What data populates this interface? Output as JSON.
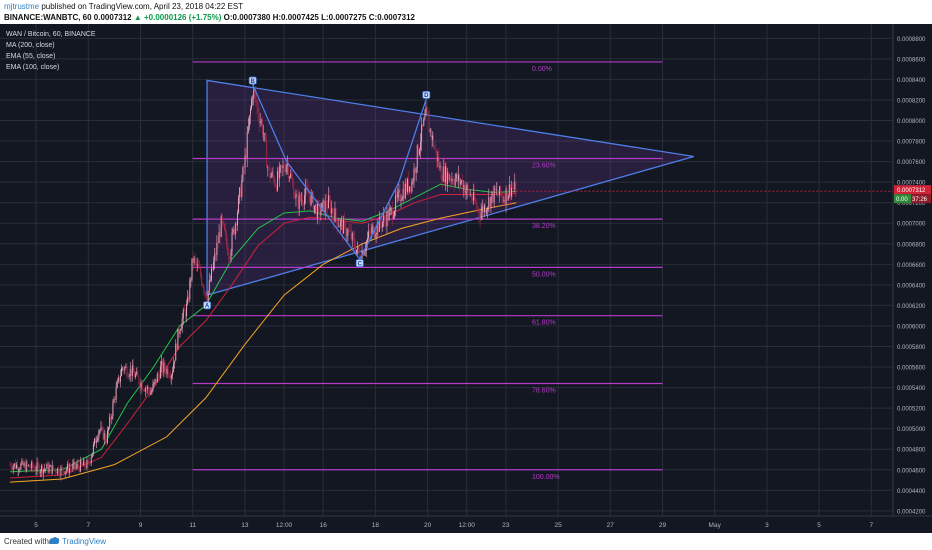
{
  "header": {
    "author": "mjtrustme",
    "published": " published on TradingView.com, April 23, 2018 04:22 EST",
    "symbol_line": "BINANCE:WANBTC, 60",
    "open_label": "O:",
    "open": "0.0007380",
    "high_label": "H:",
    "high": "0.0007425",
    "low_label": "L:",
    "low": "0.0007275",
    "close_label": "C:",
    "close": "0.0007312",
    "last": "0.0007312",
    "change": "▲ +0.0000126 (+1.75%)"
  },
  "legend": {
    "title": "WAN / Bitcoin, 60, BINANCE",
    "ma200": "MA (200, close)",
    "ema55": "EMA (55, close)",
    "ema100": "EMA (100, close)"
  },
  "price_tags": {
    "last": "0.0007312",
    "countdown": "37:26",
    "ema_value": "0.00"
  },
  "footer": {
    "created": "Created with",
    "brand": "TradingView"
  },
  "colors": {
    "background": "#131722",
    "grid": "#2a2e39",
    "fib": "#b43bc8",
    "pattern": "#4e7ee8",
    "up": "#e8a0b8",
    "down": "#a02848",
    "ma200": "#f5a623",
    "ema55": "#22c44a",
    "ema100": "#d0233a",
    "last_price": "#d0233a"
  },
  "chart_data": {
    "type": "candlestick",
    "symbol": "WANBTC",
    "exchange": "BINANCE",
    "interval": "60",
    "x_ticks": [
      "5",
      "7",
      "9",
      "11",
      "13",
      "12:00",
      "16",
      "18",
      "20",
      "12:00",
      "23",
      "25",
      "27",
      "29",
      "May",
      "3",
      "5",
      "7"
    ],
    "y_ticks": [
      "0.0008800",
      "0.0008600",
      "0.0008400",
      "0.0008200",
      "0.0008000",
      "0.0007800",
      "0.0007600",
      "0.0007400",
      "0.0007200",
      "0.0007000",
      "0.0006800",
      "0.0006600",
      "0.0006400",
      "0.0006200",
      "0.0006000",
      "0.0005800",
      "0.0005600",
      "0.0005400",
      "0.0005200",
      "0.0005000",
      "0.0004800",
      "0.0004600",
      "0.0004400",
      "0.0004200"
    ],
    "ylim": [
      0.000415,
      0.000892
    ],
    "fib_levels": [
      {
        "label": "0.00%",
        "price": 0.000857
      },
      {
        "label": "23.60%",
        "price": 0.000763
      },
      {
        "label": "38.20%",
        "price": 0.000704
      },
      {
        "label": "50.00%",
        "price": 0.000657
      },
      {
        "label": "61.80%",
        "price": 0.00061
      },
      {
        "label": "78.60%",
        "price": 0.000544
      },
      {
        "label": "100.00%",
        "price": 0.00046
      }
    ],
    "pattern_points": [
      {
        "label": "A",
        "day": 11.55,
        "price": 0.000624
      },
      {
        "label": "B",
        "day": 13.3,
        "price": 0.000835
      },
      {
        "label": "C",
        "day": 17.4,
        "price": 0.000665
      },
      {
        "label": "D",
        "day": 19.95,
        "price": 0.000821
      }
    ],
    "triangle": [
      {
        "day": 11.55,
        "price": 0.000839
      },
      {
        "day": 30.2,
        "price": 0.000765
      },
      {
        "day": 11.55,
        "price": 0.00063
      }
    ],
    "inner_path": [
      {
        "day": 13.3,
        "price": 0.000835
      },
      {
        "day": 14.6,
        "price": 0.00076
      },
      {
        "day": 17.4,
        "price": 0.000665
      },
      {
        "day": 18.9,
        "price": 0.00074
      },
      {
        "day": 19.95,
        "price": 0.000821
      }
    ],
    "series": [
      {
        "name": "MA (200, close)",
        "points": [
          [
            4.0,
            0.000448
          ],
          [
            6.0,
            0.000451
          ],
          [
            8.0,
            0.000465
          ],
          [
            10.0,
            0.000492
          ],
          [
            11.5,
            0.00053
          ],
          [
            13.0,
            0.000582
          ],
          [
            14.5,
            0.00063
          ],
          [
            16.0,
            0.00066
          ],
          [
            17.5,
            0.00068
          ],
          [
            19.0,
            0.000695
          ],
          [
            20.5,
            0.000705
          ],
          [
            22.0,
            0.000713
          ],
          [
            23.4,
            0.00072
          ]
        ]
      },
      {
        "name": "EMA (55, close)",
        "points": [
          [
            4.0,
            0.000458
          ],
          [
            6.0,
            0.00046
          ],
          [
            7.5,
            0.00048
          ],
          [
            8.5,
            0.000525
          ],
          [
            9.5,
            0.00056
          ],
          [
            10.5,
            0.0006
          ],
          [
            11.5,
            0.00062
          ],
          [
            12.5,
            0.000665
          ],
          [
            13.5,
            0.000695
          ],
          [
            14.5,
            0.00071
          ],
          [
            15.5,
            0.000712
          ],
          [
            16.5,
            0.000705
          ],
          [
            17.5,
            0.000702
          ],
          [
            18.5,
            0.000712
          ],
          [
            19.5,
            0.000725
          ],
          [
            20.5,
            0.000738
          ],
          [
            21.5,
            0.000733
          ],
          [
            22.5,
            0.00073
          ],
          [
            23.4,
            0.000731
          ]
        ]
      },
      {
        "name": "EMA (100, close)",
        "points": [
          [
            4.0,
            0.000452
          ],
          [
            6.0,
            0.000455
          ],
          [
            7.5,
            0.000472
          ],
          [
            8.5,
            0.000505
          ],
          [
            9.5,
            0.00054
          ],
          [
            10.5,
            0.00058
          ],
          [
            11.5,
            0.000605
          ],
          [
            12.5,
            0.00064
          ],
          [
            13.5,
            0.000678
          ],
          [
            14.5,
            0.0007
          ],
          [
            15.5,
            0.000706
          ],
          [
            16.5,
            0.000703
          ],
          [
            17.5,
            0.0007
          ],
          [
            18.5,
            0.000708
          ],
          [
            19.5,
            0.00072
          ],
          [
            20.5,
            0.000728
          ],
          [
            21.5,
            0.000728
          ],
          [
            22.5,
            0.000728
          ],
          [
            23.4,
            0.000729
          ]
        ]
      }
    ],
    "close_path": [
      [
        4.0,
        0.000465
      ],
      [
        5.0,
        0.000462
      ],
      [
        6.0,
        0.00046
      ],
      [
        7.0,
        0.000465
      ],
      [
        7.4,
        0.0005
      ],
      [
        7.7,
        0.00049
      ],
      [
        8.0,
        0.00053
      ],
      [
        8.3,
        0.00056
      ],
      [
        8.7,
        0.000555
      ],
      [
        9.0,
        0.000545
      ],
      [
        9.4,
        0.000535
      ],
      [
        9.8,
        0.00056
      ],
      [
        10.2,
        0.000555
      ],
      [
        10.5,
        0.0006
      ],
      [
        10.8,
        0.00062
      ],
      [
        11.0,
        0.000665
      ],
      [
        11.3,
        0.00065
      ],
      [
        11.55,
        0.000628
      ],
      [
        11.8,
        0.00066
      ],
      [
        12.1,
        0.0007
      ],
      [
        12.4,
        0.00067
      ],
      [
        12.7,
        0.00071
      ],
      [
        13.0,
        0.00076
      ],
      [
        13.3,
        0.00083
      ],
      [
        13.5,
        0.00081
      ],
      [
        13.7,
        0.00079
      ],
      [
        13.9,
        0.00075
      ],
      [
        14.2,
        0.00074
      ],
      [
        14.6,
        0.00076
      ],
      [
        15.0,
        0.00072
      ],
      [
        15.4,
        0.00073
      ],
      [
        15.8,
        0.00071
      ],
      [
        16.2,
        0.00072
      ],
      [
        16.6,
        0.0007
      ],
      [
        17.0,
        0.00069
      ],
      [
        17.4,
        0.000668
      ],
      [
        17.8,
        0.00069
      ],
      [
        18.2,
        0.0007
      ],
      [
        18.6,
        0.00071
      ],
      [
        19.0,
        0.00073
      ],
      [
        19.4,
        0.00074
      ],
      [
        19.7,
        0.00078
      ],
      [
        19.95,
        0.000805
      ],
      [
        20.2,
        0.00078
      ],
      [
        20.5,
        0.00075
      ],
      [
        20.9,
        0.000745
      ],
      [
        21.3,
        0.00074
      ],
      [
        21.7,
        0.000725
      ],
      [
        22.0,
        0.00071
      ],
      [
        22.3,
        0.00072
      ],
      [
        22.6,
        0.00073
      ],
      [
        22.9,
        0.000725
      ],
      [
        23.2,
        0.000735
      ],
      [
        23.4,
        0.000731
      ]
    ]
  }
}
